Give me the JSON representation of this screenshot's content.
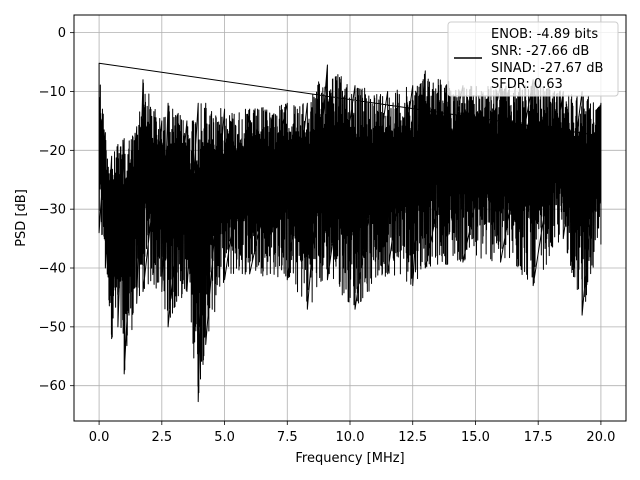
{
  "chart_data": {
    "type": "line",
    "xlabel": "Frequency [MHz]",
    "ylabel": "PSD [dB]",
    "xlim": [
      -1,
      21
    ],
    "ylim": [
      -66,
      3
    ],
    "xticks": [
      0.0,
      2.5,
      5.0,
      7.5,
      10.0,
      12.5,
      15.0,
      17.5,
      20.0
    ],
    "xtick_labels": [
      "0.0",
      "2.5",
      "5.0",
      "7.5",
      "10.0",
      "12.5",
      "15.0",
      "17.5",
      "20.0"
    ],
    "yticks": [
      0,
      -10,
      -20,
      -30,
      -40,
      -50,
      -60
    ],
    "ytick_labels": [
      "0",
      "−10",
      "−20",
      "−30",
      "−40",
      "−50",
      "−60"
    ],
    "grid": true,
    "legend": {
      "placement": "upper-right",
      "entries": [
        "ENOB: -4.89 bits",
        "SNR: -27.66 dB",
        "SINAD: -27.67 dB",
        "SFDR: 0.63"
      ]
    },
    "series": [
      {
        "color": "#000000",
        "x_start": 0,
        "x_end": 20,
        "envelope": [
          {
            "x": 0.0,
            "y_max": -5.2,
            "y_min": -34
          },
          {
            "x": 0.25,
            "y_max": -17,
            "y_min": -40
          },
          {
            "x": 0.5,
            "y_max": -21,
            "y_min": -52
          },
          {
            "x": 0.75,
            "y_max": -19,
            "y_min": -50
          },
          {
            "x": 1.0,
            "y_max": -18,
            "y_min": -58
          },
          {
            "x": 1.5,
            "y_max": -16,
            "y_min": -46
          },
          {
            "x": 1.75,
            "y_max": -8,
            "y_min": -44
          },
          {
            "x": 2.5,
            "y_max": -15,
            "y_min": -44
          },
          {
            "x": 2.75,
            "y_max": -12,
            "y_min": -50
          },
          {
            "x": 3.5,
            "y_max": -15,
            "y_min": -44
          },
          {
            "x": 3.95,
            "y_max": -12,
            "y_min": -62.7
          },
          {
            "x": 4.25,
            "y_max": -12,
            "y_min": -53
          },
          {
            "x": 5.0,
            "y_max": -13,
            "y_min": -42
          },
          {
            "x": 6.0,
            "y_max": -13,
            "y_min": -41
          },
          {
            "x": 7.5,
            "y_max": -12,
            "y_min": -42
          },
          {
            "x": 8.3,
            "y_max": -12,
            "y_min": -47
          },
          {
            "x": 9.1,
            "y_max": -5.5,
            "y_min": -42
          },
          {
            "x": 10.2,
            "y_max": -9,
            "y_min": -47
          },
          {
            "x": 11.5,
            "y_max": -10,
            "y_min": -41
          },
          {
            "x": 12.5,
            "y_max": -9,
            "y_min": -43
          },
          {
            "x": 13.0,
            "y_max": -6.5,
            "y_min": -40
          },
          {
            "x": 14.5,
            "y_max": -9,
            "y_min": -39
          },
          {
            "x": 16.0,
            "y_max": -9,
            "y_min": -39
          },
          {
            "x": 17.3,
            "y_max": -8,
            "y_min": -43
          },
          {
            "x": 18.5,
            "y_max": -10,
            "y_min": -35
          },
          {
            "x": 19.25,
            "y_max": -10,
            "y_min": -48
          },
          {
            "x": 20.0,
            "y_max": -12,
            "y_min": -36
          }
        ]
      }
    ]
  }
}
